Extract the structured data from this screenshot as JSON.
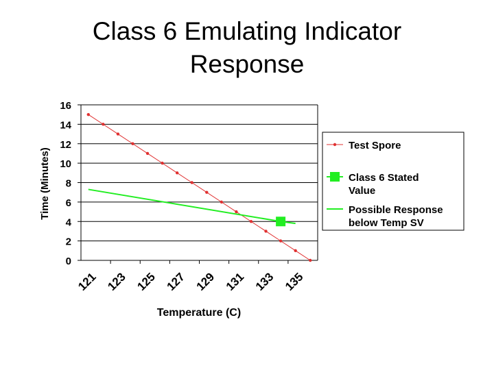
{
  "title_lines": [
    "Class 6 Emulating Indicator",
    "Response"
  ],
  "colors": {
    "test_spore": "#e03030",
    "stated_value": "#22ee22",
    "possible_response": "#22ee22",
    "axes": "#000000",
    "gridlines": "#000000"
  },
  "chart_data": {
    "type": "line",
    "xlabel": "Temperature (C)",
    "ylabel": "Time (Minutes)",
    "ylim": [
      0,
      16
    ],
    "yticks": [
      0,
      2,
      4,
      6,
      8,
      10,
      12,
      14,
      16
    ],
    "xticks": [
      "121",
      "123",
      "125",
      "127",
      "129",
      "131",
      "133",
      "135"
    ],
    "xlim": [
      120.5,
      136.5
    ],
    "grid": "horizontal",
    "legend_position": "right",
    "series": [
      {
        "name": "Test Spore",
        "style": "line-with-small-markers",
        "x": [
          121,
          122,
          123,
          124,
          125,
          126,
          127,
          128,
          129,
          130,
          131,
          132,
          133,
          134,
          135,
          136
        ],
        "y": [
          15,
          14,
          13,
          12,
          11,
          10,
          9,
          8,
          7,
          6,
          5,
          4,
          3,
          2,
          1,
          0
        ]
      },
      {
        "name": "Class 6 Stated Value",
        "style": "square-marker",
        "x": [
          134
        ],
        "y": [
          4
        ]
      },
      {
        "name": "Possible Response below Temp SV",
        "style": "line",
        "x": [
          121,
          134,
          135
        ],
        "y": [
          7.3,
          4.0,
          3.8
        ]
      }
    ],
    "legend_lines": [
      [
        "Test Spore"
      ],
      [
        "Class 6 Stated",
        "Value"
      ],
      [
        "Possible Response",
        "below Temp SV"
      ]
    ]
  }
}
